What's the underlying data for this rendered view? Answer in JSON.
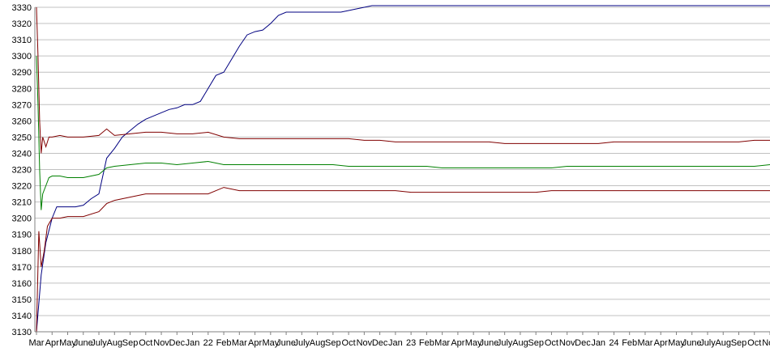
{
  "chart_data": {
    "type": "line",
    "title": "",
    "xlabel": "",
    "ylabel": "",
    "ylim": [
      3130,
      3330
    ],
    "y_ticks": [
      3130,
      3140,
      3150,
      3160,
      3170,
      3180,
      3190,
      3200,
      3210,
      3220,
      3230,
      3240,
      3250,
      3260,
      3270,
      3280,
      3290,
      3300,
      3310,
      3320,
      3330
    ],
    "grid": true,
    "legend": "none",
    "x_tick_labels": [
      "Mar",
      "Apr",
      "May",
      "June",
      "July",
      "Aug",
      "Sep",
      "Oct",
      "Nov",
      "Dec",
      "Jan",
      "22",
      "Feb",
      "Mar",
      "Apr",
      "May",
      "June",
      "July",
      "Aug",
      "Sep",
      "Oct",
      "Nov",
      "Dec",
      "Jan",
      "23",
      "Feb",
      "Mar",
      "Apr",
      "May",
      "June",
      "July",
      "Aug",
      "Sep",
      "Oct",
      "Nov",
      "Dec",
      "Jan",
      "24",
      "Feb",
      "Mar",
      "Apr",
      "May",
      "June",
      "July",
      "Aug",
      "Sep",
      "Oct",
      "Nov"
    ],
    "series": [
      {
        "color": "#000080",
        "x": [
          0,
          0.3,
          0.6,
          1,
          1.3,
          1.6,
          2,
          2.5,
          3,
          3.5,
          4,
          4.5,
          5,
          5.5,
          6,
          6.5,
          7,
          7.5,
          8,
          8.5,
          9,
          9.5,
          10,
          10.5,
          11,
          11.5,
          12,
          12.5,
          13,
          13.5,
          14,
          14.5,
          15,
          15.5,
          16,
          16.5,
          17,
          17.5,
          18,
          18.5,
          19,
          19.5,
          20,
          20.5,
          21,
          21.5,
          22,
          23,
          24,
          25,
          26,
          27,
          28,
          29,
          30,
          31,
          32,
          33,
          34,
          35,
          36,
          37,
          38,
          39,
          40,
          41,
          42,
          43,
          44,
          45,
          46,
          47
        ],
        "values": [
          3130,
          3165,
          3185,
          3200,
          3207,
          3207,
          3207,
          3207,
          3208,
          3212,
          3215,
          3237,
          3243,
          3250,
          3254,
          3258,
          3261,
          3263,
          3265,
          3267,
          3268,
          3270,
          3270,
          3272,
          3280,
          3288,
          3290,
          3298,
          3306,
          3313,
          3315,
          3316,
          3320,
          3325,
          3327,
          3327,
          3327,
          3327,
          3327,
          3327,
          3327,
          3327,
          3328,
          3329,
          3330,
          3331,
          3331,
          3331,
          3331,
          3331,
          3331,
          3331,
          3331,
          3331,
          3331,
          3331,
          3331,
          3331,
          3331,
          3331,
          3331,
          3331,
          3331,
          3331,
          3331,
          3331,
          3331,
          3331,
          3331,
          3331,
          3331,
          3331
        ]
      },
      {
        "color": "#800000",
        "x": [
          0,
          0.1,
          0.2,
          0.3,
          0.4,
          0.6,
          0.8,
          1,
          1.5,
          2,
          3,
          4,
          4.5,
          5,
          6,
          7,
          8,
          9,
          10,
          11,
          12,
          13,
          14,
          15,
          16,
          17,
          18,
          19,
          20,
          21,
          22,
          23,
          24,
          25,
          26,
          27,
          28,
          29,
          30,
          31,
          32,
          33,
          34,
          35,
          36,
          37,
          38,
          39,
          40,
          41,
          42,
          43,
          44,
          45,
          46,
          47
        ],
        "values": [
          3330,
          3300,
          3260,
          3240,
          3250,
          3244,
          3250,
          3250,
          3251,
          3250,
          3250,
          3251,
          3255,
          3251,
          3252,
          3253,
          3253,
          3252,
          3252,
          3253,
          3250,
          3249,
          3249,
          3249,
          3249,
          3249,
          3249,
          3249,
          3249,
          3248,
          3248,
          3247,
          3247,
          3247,
          3247,
          3247,
          3247,
          3247,
          3246,
          3246,
          3246,
          3246,
          3246,
          3246,
          3246,
          3247,
          3247,
          3247,
          3247,
          3247,
          3247,
          3247,
          3247,
          3247,
          3248,
          3248
        ]
      },
      {
        "color": "#008000",
        "x": [
          0,
          0.1,
          0.2,
          0.3,
          0.4,
          0.6,
          0.8,
          1,
          1.5,
          2,
          3,
          4,
          4.5,
          5,
          6,
          7,
          8,
          9,
          10,
          11,
          12,
          13,
          14,
          15,
          16,
          17,
          18,
          19,
          20,
          21,
          22,
          23,
          24,
          25,
          26,
          27,
          28,
          29,
          30,
          31,
          32,
          33,
          34,
          35,
          36,
          37,
          38,
          39,
          40,
          41,
          42,
          43,
          44,
          45,
          46,
          47
        ],
        "values": [
          3300,
          3270,
          3230,
          3205,
          3215,
          3220,
          3225,
          3226,
          3226,
          3225,
          3225,
          3227,
          3231,
          3232,
          3233,
          3234,
          3234,
          3233,
          3234,
          3235,
          3233,
          3233,
          3233,
          3233,
          3233,
          3233,
          3233,
          3233,
          3232,
          3232,
          3232,
          3232,
          3232,
          3232,
          3231,
          3231,
          3231,
          3231,
          3231,
          3231,
          3231,
          3231,
          3232,
          3232,
          3232,
          3232,
          3232,
          3232,
          3232,
          3232,
          3232,
          3232,
          3232,
          3232,
          3232,
          3233
        ]
      },
      {
        "color": "#800000",
        "x": [
          0,
          0.15,
          0.3,
          0.5,
          0.7,
          1,
          1.5,
          2,
          3,
          4,
          4.5,
          5,
          6,
          7,
          8,
          9,
          10,
          11,
          12,
          13,
          14,
          15,
          16,
          17,
          18,
          19,
          20,
          21,
          22,
          23,
          24,
          25,
          26,
          27,
          28,
          29,
          30,
          31,
          32,
          33,
          34,
          35,
          36,
          37,
          38,
          39,
          40,
          41,
          42,
          43,
          44,
          45,
          46,
          47
        ],
        "values": [
          3130,
          3192,
          3170,
          3180,
          3195,
          3200,
          3200,
          3201,
          3201,
          3204,
          3209,
          3211,
          3213,
          3215,
          3215,
          3215,
          3215,
          3215,
          3219,
          3217,
          3217,
          3217,
          3217,
          3217,
          3217,
          3217,
          3217,
          3217,
          3217,
          3217,
          3216,
          3216,
          3216,
          3216,
          3216,
          3216,
          3216,
          3216,
          3216,
          3217,
          3217,
          3217,
          3217,
          3217,
          3217,
          3217,
          3217,
          3217,
          3217,
          3217,
          3217,
          3217,
          3217,
          3217
        ]
      }
    ]
  }
}
